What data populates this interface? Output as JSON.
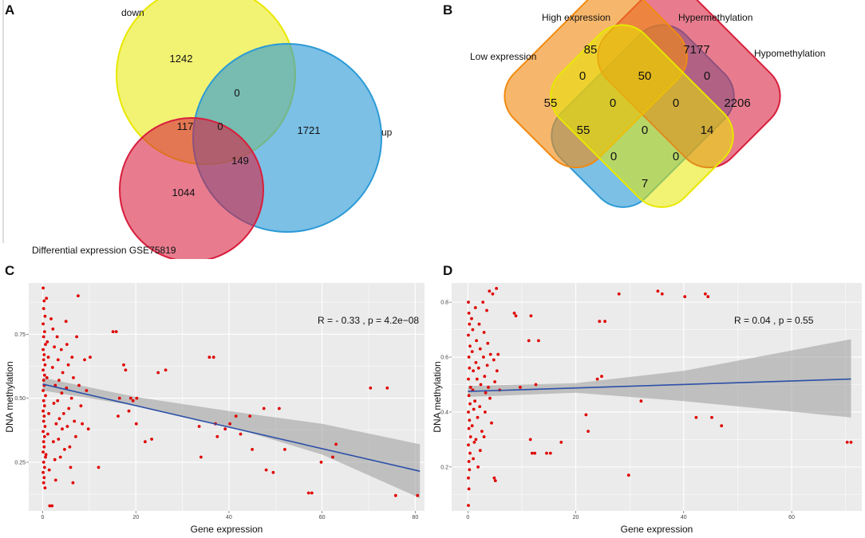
{
  "panels": {
    "a": {
      "letter": "A",
      "sets": [
        {
          "name": "down",
          "color": "#e8e800"
        },
        {
          "name": "up",
          "color": "#2b9ad6"
        },
        {
          "name": "Differential expression GSE75819",
          "color": "#d81e3c"
        }
      ],
      "regions": {
        "down_only": "1242",
        "up_only": "1721",
        "diff_only": "1044",
        "down_up": "0",
        "down_diff": "117",
        "up_diff": "149",
        "all_three": "0"
      }
    },
    "b": {
      "letter": "B",
      "sets": [
        {
          "name": "Low expression",
          "color": "#2b9ad6"
        },
        {
          "name": "High expression",
          "color": "#d81e3c"
        },
        {
          "name": "Hypermethylation",
          "color": "#f08a12"
        },
        {
          "name": "Hypomethylation",
          "color": "#e8e800"
        }
      ],
      "regions": {
        "high_only": "85",
        "hyper_only": "7177",
        "low_only": "55",
        "hypo_only": "2206",
        "low_high": "0",
        "high_hyper": "50",
        "hyper_hypo": "0",
        "low_high_hyper": "0",
        "high_hyper_hypo": "0",
        "low_hyper": "55",
        "all_four": "0",
        "high_hypo": "14",
        "low_hyper_hypo": "0",
        "low_high_hypo": "0",
        "low_hypo": "7"
      }
    }
  },
  "chart_data": [
    {
      "panel": "C",
      "type": "scatter",
      "xlabel": "Gene expression",
      "ylabel": "DNA methylation",
      "xlim": [
        -3,
        82
      ],
      "ylim": [
        0.06,
        0.95
      ],
      "xticks": [
        "0",
        "20",
        "40",
        "60",
        "80"
      ],
      "yticks": [
        "0.25",
        "0.50",
        "0.75"
      ],
      "annotation": "R = - 0.33 , p = 4.2e−08",
      "regression": {
        "x": [
          0,
          81
        ],
        "y": [
          0.555,
          0.215
        ]
      },
      "confidence_band": {
        "x": [
          0,
          20,
          40,
          60,
          81
        ],
        "lower": [
          0.53,
          0.47,
          0.39,
          0.28,
          0.11
        ],
        "upper": [
          0.58,
          0.505,
          0.45,
          0.4,
          0.32
        ]
      },
      "points": [
        [
          0.1,
          0.93
        ],
        [
          0.3,
          0.88
        ],
        [
          0.2,
          0.85
        ],
        [
          0.5,
          0.82
        ],
        [
          0.1,
          0.79
        ],
        [
          0.4,
          0.76
        ],
        [
          0.2,
          0.74
        ],
        [
          0.6,
          0.71
        ],
        [
          0.1,
          0.69
        ],
        [
          0.3,
          0.67
        ],
        [
          0.2,
          0.65
        ],
        [
          0.5,
          0.63
        ],
        [
          0.1,
          0.61
        ],
        [
          0.4,
          0.59
        ],
        [
          0.2,
          0.57
        ],
        [
          0.3,
          0.55
        ],
        [
          0.1,
          0.53
        ],
        [
          0.6,
          0.51
        ],
        [
          0.2,
          0.49
        ],
        [
          0.4,
          0.47
        ],
        [
          0.1,
          0.45
        ],
        [
          0.3,
          0.43
        ],
        [
          0.2,
          0.41
        ],
        [
          0.5,
          0.39
        ],
        [
          0.1,
          0.37
        ],
        [
          0.4,
          0.35
        ],
        [
          0.2,
          0.33
        ],
        [
          0.3,
          0.31
        ],
        [
          0.1,
          0.29
        ],
        [
          0.6,
          0.27
        ],
        [
          0.2,
          0.25
        ],
        [
          0.4,
          0.23
        ],
        [
          0.1,
          0.21
        ],
        [
          0.3,
          0.19
        ],
        [
          0.2,
          0.17
        ],
        [
          0.5,
          0.15
        ],
        [
          0.8,
          0.89
        ],
        [
          1.0,
          0.72
        ],
        [
          1.2,
          0.66
        ],
        [
          0.9,
          0.58
        ],
        [
          1.3,
          0.44
        ],
        [
          1.1,
          0.36
        ],
        [
          0.7,
          0.28
        ],
        [
          1.4,
          0.22
        ],
        [
          1.5,
          0.08
        ],
        [
          2.0,
          0.08
        ],
        [
          1.8,
          0.81
        ],
        [
          2.2,
          0.77
        ],
        [
          2.5,
          0.7
        ],
        [
          2.1,
          0.62
        ],
        [
          2.7,
          0.55
        ],
        [
          2.4,
          0.48
        ],
        [
          2.9,
          0.4
        ],
        [
          2.3,
          0.33
        ],
        [
          2.6,
          0.26
        ],
        [
          2.8,
          0.18
        ],
        [
          3.1,
          0.74
        ],
        [
          3.3,
          0.65
        ],
        [
          3.5,
          0.57
        ],
        [
          3.2,
          0.49
        ],
        [
          3.6,
          0.42
        ],
        [
          3.4,
          0.34
        ],
        [
          3.8,
          0.27
        ],
        [
          4.0,
          0.69
        ],
        [
          4.3,
          0.6
        ],
        [
          4.1,
          0.52
        ],
        [
          4.5,
          0.44
        ],
        [
          4.2,
          0.38
        ],
        [
          4.7,
          0.3
        ],
        [
          5.0,
          0.8
        ],
        [
          5.2,
          0.71
        ],
        [
          5.5,
          0.63
        ],
        [
          5.1,
          0.54
        ],
        [
          5.6,
          0.46
        ],
        [
          5.3,
          0.39
        ],
        [
          5.8,
          0.31
        ],
        [
          6.0,
          0.23
        ],
        [
          6.3,
          0.66
        ],
        [
          6.6,
          0.58
        ],
        [
          6.2,
          0.5
        ],
        [
          6.8,
          0.41
        ],
        [
          7.1,
          0.35
        ],
        [
          6.5,
          0.17
        ],
        [
          7.3,
          0.74
        ],
        [
          7.6,
          0.9
        ],
        [
          7.8,
          0.55
        ],
        [
          8.2,
          0.47
        ],
        [
          8.5,
          0.4
        ],
        [
          9.0,
          0.65
        ],
        [
          9.4,
          0.53
        ],
        [
          9.8,
          0.38
        ],
        [
          10.2,
          0.66
        ],
        [
          12.0,
          0.23
        ],
        [
          15.1,
          0.76
        ],
        [
          15.8,
          0.76
        ],
        [
          16.5,
          0.5
        ],
        [
          16.2,
          0.43
        ],
        [
          17.4,
          0.63
        ],
        [
          17.8,
          0.61
        ],
        [
          18.5,
          0.45
        ],
        [
          18.9,
          0.5
        ],
        [
          19.4,
          0.49
        ],
        [
          20.2,
          0.5
        ],
        [
          20.1,
          0.4
        ],
        [
          22.0,
          0.33
        ],
        [
          23.4,
          0.34
        ],
        [
          24.8,
          0.6
        ],
        [
          26.4,
          0.61
        ],
        [
          33.6,
          0.39
        ],
        [
          34.0,
          0.27
        ],
        [
          35.8,
          0.66
        ],
        [
          36.7,
          0.66
        ],
        [
          37.1,
          0.4
        ],
        [
          37.5,
          0.35
        ],
        [
          39.2,
          0.38
        ],
        [
          40.2,
          0.4
        ],
        [
          41.5,
          0.43
        ],
        [
          42.5,
          0.36
        ],
        [
          44.5,
          0.43
        ],
        [
          45.0,
          0.3
        ],
        [
          47.5,
          0.46
        ],
        [
          48.0,
          0.22
        ],
        [
          49.5,
          0.21
        ],
        [
          50.8,
          0.46
        ],
        [
          52.0,
          0.3
        ],
        [
          57.1,
          0.13
        ],
        [
          57.8,
          0.13
        ],
        [
          59.8,
          0.25
        ],
        [
          62.3,
          0.27
        ],
        [
          63.0,
          0.32
        ],
        [
          70.4,
          0.54
        ],
        [
          74.0,
          0.54
        ],
        [
          75.8,
          0.12
        ],
        [
          80.5,
          0.12
        ]
      ]
    },
    {
      "panel": "D",
      "type": "scatter",
      "xlabel": "Gene expression",
      "ylabel": "DNA methylation",
      "xlim": [
        -3,
        73
      ],
      "ylim": [
        0.04,
        0.87
      ],
      "xticks": [
        "0",
        "20",
        "40",
        "60"
      ],
      "yticks": [
        "0.2",
        "0.4",
        "0.6",
        "0.8"
      ],
      "annotation": "R = 0.04 , p = 0.55",
      "regression": {
        "x": [
          0,
          71
        ],
        "y": [
          0.475,
          0.52
        ]
      },
      "confidence_band": {
        "x": [
          0,
          20,
          40,
          71
        ],
        "lower": [
          0.455,
          0.47,
          0.44,
          0.38
        ],
        "upper": [
          0.495,
          0.505,
          0.55,
          0.665
        ]
      },
      "points": [
        [
          0.1,
          0.8
        ],
        [
          0.2,
          0.76
        ],
        [
          0.3,
          0.72
        ],
        [
          0.1,
          0.68
        ],
        [
          0.4,
          0.64
        ],
        [
          0.2,
          0.6
        ],
        [
          0.3,
          0.56
        ],
        [
          0.1,
          0.52
        ],
        [
          0.5,
          0.49
        ],
        [
          0.2,
          0.46
        ],
        [
          0.4,
          0.43
        ],
        [
          0.1,
          0.4
        ],
        [
          0.3,
          0.37
        ],
        [
          0.2,
          0.34
        ],
        [
          0.5,
          0.31
        ],
        [
          0.1,
          0.28
        ],
        [
          0.4,
          0.25
        ],
        [
          0.2,
          0.22
        ],
        [
          0.3,
          0.19
        ],
        [
          0.1,
          0.16
        ],
        [
          0.2,
          0.12
        ],
        [
          0.1,
          0.06
        ],
        [
          0.7,
          0.74
        ],
        [
          0.9,
          0.7
        ],
        [
          0.8,
          0.62
        ],
        [
          1.0,
          0.55
        ],
        [
          0.9,
          0.48
        ],
        [
          1.1,
          0.41
        ],
        [
          0.8,
          0.35
        ],
        [
          1.2,
          0.29
        ],
        [
          1.0,
          0.23
        ],
        [
          1.4,
          0.78
        ],
        [
          1.6,
          0.66
        ],
        [
          1.5,
          0.58
        ],
        [
          1.7,
          0.52
        ],
        [
          1.3,
          0.44
        ],
        [
          1.8,
          0.38
        ],
        [
          1.5,
          0.3
        ],
        [
          1.9,
          0.2
        ],
        [
          2.1,
          0.72
        ],
        [
          2.3,
          0.63
        ],
        [
          2.0,
          0.56
        ],
        [
          2.4,
          0.5
        ],
        [
          2.2,
          0.42
        ],
        [
          2.6,
          0.33
        ],
        [
          2.3,
          0.26
        ],
        [
          2.8,
          0.8
        ],
        [
          3.0,
          0.69
        ],
        [
          2.9,
          0.6
        ],
        [
          3.1,
          0.53
        ],
        [
          3.3,
          0.47
        ],
        [
          3.2,
          0.4
        ],
        [
          3.0,
          0.31
        ],
        [
          3.5,
          0.77
        ],
        [
          3.7,
          0.65
        ],
        [
          3.6,
          0.57
        ],
        [
          3.8,
          0.49
        ],
        [
          4.0,
          0.84
        ],
        [
          4.2,
          0.61
        ],
        [
          4.1,
          0.45
        ],
        [
          4.4,
          0.36
        ],
        [
          4.6,
          0.83
        ],
        [
          4.8,
          0.59
        ],
        [
          5.0,
          0.51
        ],
        [
          5.3,
          0.85
        ],
        [
          5.4,
          0.55
        ],
        [
          5.6,
          0.61
        ],
        [
          5.9,
          0.48
        ],
        [
          4.9,
          0.16
        ],
        [
          5.1,
          0.15
        ],
        [
          8.6,
          0.76
        ],
        [
          8.9,
          0.75
        ],
        [
          9.7,
          0.49
        ],
        [
          11.3,
          0.66
        ],
        [
          11.7,
          0.75
        ],
        [
          11.6,
          0.3
        ],
        [
          11.9,
          0.25
        ],
        [
          12.4,
          0.25
        ],
        [
          12.6,
          0.5
        ],
        [
          13.1,
          0.66
        ],
        [
          14.6,
          0.25
        ],
        [
          15.3,
          0.25
        ],
        [
          17.3,
          0.29
        ],
        [
          21.9,
          0.39
        ],
        [
          22.3,
          0.33
        ],
        [
          24.0,
          0.52
        ],
        [
          24.4,
          0.73
        ],
        [
          24.8,
          0.53
        ],
        [
          25.4,
          0.73
        ],
        [
          28.0,
          0.83
        ],
        [
          29.8,
          0.17
        ],
        [
          32.1,
          0.44
        ],
        [
          35.2,
          0.84
        ],
        [
          36.0,
          0.83
        ],
        [
          40.2,
          0.82
        ],
        [
          42.3,
          0.38
        ],
        [
          44.0,
          0.83
        ],
        [
          44.5,
          0.82
        ],
        [
          45.2,
          0.38
        ],
        [
          47.0,
          0.35
        ],
        [
          70.3,
          0.29
        ],
        [
          71.0,
          0.29
        ]
      ]
    }
  ]
}
